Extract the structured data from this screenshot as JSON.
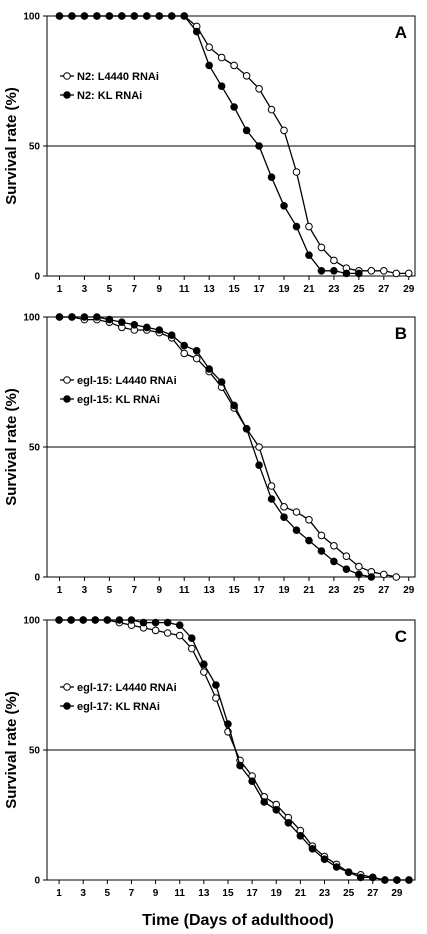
{
  "figure": {
    "xlabel": "Time (Days of adulthood)"
  },
  "chart_data": [
    {
      "type": "line",
      "panel": "A",
      "ylabel": "Survival rate (%)",
      "xlim": [
        0,
        29.5
      ],
      "ylim": [
        0,
        100
      ],
      "x_ticks": [
        1,
        3,
        5,
        7,
        9,
        11,
        13,
        15,
        17,
        19,
        21,
        23,
        25,
        27,
        29
      ],
      "y_ticks": [
        0,
        50,
        100
      ],
      "reference_line": 50,
      "legend_position": "upper-left",
      "series": [
        {
          "name": "N2: L4440 RNAi",
          "marker": "open-circle",
          "x": [
            1,
            2,
            3,
            4,
            5,
            6,
            7,
            8,
            9,
            10,
            11,
            12,
            13,
            14,
            15,
            16,
            17,
            18,
            19,
            20,
            21,
            22,
            23,
            24,
            25,
            26,
            27,
            28,
            29
          ],
          "y": [
            100,
            100,
            100,
            100,
            100,
            100,
            100,
            100,
            100,
            100,
            100,
            96,
            88,
            84,
            81,
            77,
            72,
            64,
            56,
            40,
            19,
            11,
            6,
            3,
            2,
            2,
            2,
            1,
            1
          ]
        },
        {
          "name": "N2: KL RNAi",
          "marker": "filled-circle",
          "x": [
            1,
            2,
            3,
            4,
            5,
            6,
            7,
            8,
            9,
            10,
            11,
            12,
            13,
            14,
            15,
            16,
            17,
            18,
            19,
            20,
            21,
            22,
            23,
            24,
            25
          ],
          "y": [
            100,
            100,
            100,
            100,
            100,
            100,
            100,
            100,
            100,
            100,
            100,
            94,
            81,
            73,
            65,
            56,
            50,
            38,
            27,
            19,
            8,
            2,
            2,
            1,
            1
          ]
        }
      ]
    },
    {
      "type": "line",
      "panel": "B",
      "ylabel": "Survival rate (%)",
      "xlim": [
        0,
        29.5
      ],
      "ylim": [
        0,
        100
      ],
      "x_ticks": [
        1,
        3,
        5,
        7,
        9,
        11,
        13,
        15,
        17,
        19,
        21,
        23,
        25,
        27,
        29
      ],
      "y_ticks": [
        0,
        50,
        100
      ],
      "reference_line": 50,
      "legend_position": "upper-left",
      "series": [
        {
          "name": "egl-15: L4440 RNAi",
          "marker": "open-circle",
          "x": [
            1,
            2,
            3,
            4,
            5,
            6,
            7,
            8,
            9,
            10,
            11,
            12,
            13,
            14,
            15,
            16,
            17,
            18,
            19,
            20,
            21,
            22,
            23,
            24,
            25,
            26,
            27,
            28
          ],
          "y": [
            100,
            100,
            99,
            99,
            98,
            96,
            95,
            95,
            94,
            92,
            86,
            84,
            79,
            73,
            65,
            57,
            50,
            35,
            27,
            25,
            22,
            16,
            12,
            8,
            4,
            2,
            1,
            0
          ]
        },
        {
          "name": "egl-15: KL RNAi",
          "marker": "filled-circle",
          "x": [
            1,
            2,
            3,
            4,
            5,
            6,
            7,
            8,
            9,
            10,
            11,
            12,
            13,
            14,
            15,
            16,
            17,
            18,
            19,
            20,
            21,
            22,
            23,
            24,
            25,
            26
          ],
          "y": [
            100,
            100,
            100,
            100,
            99,
            98,
            97,
            96,
            95,
            93,
            89,
            87,
            80,
            75,
            66,
            57,
            43,
            30,
            23,
            18,
            14,
            10,
            6,
            3,
            1,
            0
          ]
        }
      ]
    },
    {
      "type": "line",
      "panel": "C",
      "ylabel": "Survival rate (%)",
      "xlim": [
        0,
        30.5
      ],
      "ylim": [
        0,
        100
      ],
      "x_ticks": [
        1,
        3,
        5,
        7,
        9,
        11,
        13,
        15,
        17,
        19,
        21,
        23,
        25,
        27,
        29
      ],
      "y_ticks": [
        0,
        50,
        100
      ],
      "reference_line": 50,
      "legend_position": "upper-left",
      "series": [
        {
          "name": "egl-17: L4440 RNAi",
          "marker": "open-circle",
          "x": [
            1,
            2,
            3,
            4,
            5,
            6,
            7,
            8,
            9,
            10,
            11,
            12,
            13,
            14,
            15,
            16,
            17,
            18,
            19,
            20,
            21,
            22,
            23,
            24,
            25,
            26,
            27,
            28,
            29,
            30
          ],
          "y": [
            100,
            100,
            100,
            100,
            100,
            99,
            98,
            97,
            96,
            95,
            94,
            89,
            80,
            70,
            57,
            46,
            40,
            32,
            29,
            24,
            19,
            13,
            9,
            6,
            3,
            2,
            1,
            0,
            0,
            0
          ]
        },
        {
          "name": "egl-17: KL RNAi",
          "marker": "filled-circle",
          "x": [
            1,
            2,
            3,
            4,
            5,
            6,
            7,
            8,
            9,
            10,
            11,
            12,
            13,
            14,
            15,
            16,
            17,
            18,
            19,
            20,
            21,
            22,
            23,
            24,
            25,
            26,
            27,
            28,
            29,
            30
          ],
          "y": [
            100,
            100,
            100,
            100,
            100,
            100,
            100,
            99,
            99,
            99,
            98,
            93,
            83,
            75,
            60,
            44,
            38,
            30,
            27,
            22,
            17,
            12,
            8,
            5,
            3,
            1,
            1,
            0,
            0,
            0
          ]
        }
      ]
    }
  ]
}
